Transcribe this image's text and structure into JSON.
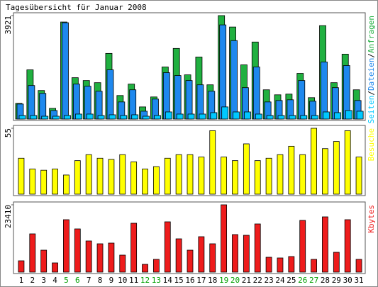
{
  "chart_data": {
    "title": "Tagesübersicht für Januar 2008",
    "categories": [
      "1",
      "2",
      "3",
      "4",
      "5",
      "6",
      "7",
      "8",
      "9",
      "10",
      "11",
      "12",
      "13",
      "14",
      "15",
      "16",
      "17",
      "18",
      "19",
      "20",
      "21",
      "22",
      "23",
      "24",
      "25",
      "26",
      "27",
      "28",
      "29",
      "30",
      "31"
    ],
    "category_colors": [
      "#000000",
      "#000000",
      "#000000",
      "#000000",
      "#00a000",
      "#00a000",
      "#000000",
      "#000000",
      "#000000",
      "#000000",
      "#000000",
      "#00a000",
      "#00a000",
      "#000000",
      "#000000",
      "#000000",
      "#000000",
      "#000000",
      "#00a000",
      "#00a000",
      "#000000",
      "#000000",
      "#000000",
      "#000000",
      "#000000",
      "#00a000",
      "#00a000",
      "#000000",
      "#000000",
      "#000000",
      "#000000"
    ],
    "legend_separator": "/",
    "charts": [
      {
        "type": "bar",
        "ylim": [
          0,
          3921
        ],
        "yticks": [
          3921
        ],
        "series": [
          {
            "name": "Seiten",
            "color": "#00c8ff",
            "values": [
              135,
              135,
              108,
              108,
              135,
              189,
              189,
              135,
              162,
              135,
              162,
              108,
              135,
              270,
              189,
              189,
              189,
              243,
              460,
              270,
              270,
              189,
              135,
              135,
              135,
              135,
              135,
              270,
              243,
              324,
              297
            ]
          },
          {
            "name": "Dateien",
            "color": "#1e88ee",
            "values": [
              568,
              1271,
              973,
              324,
              3651,
              1325,
              1244,
              1055,
              1866,
              649,
              1109,
              297,
              757,
              1758,
              1649,
              1460,
              1298,
              1055,
              3569,
              2974,
              1190,
              1974,
              649,
              703,
              730,
              1460,
              676,
              2163,
              1190,
              2028,
              703
            ]
          },
          {
            "name": "Anfragen",
            "color": "#20b040",
            "values": [
              595,
              1866,
              1082,
              406,
              3678,
              1568,
              1460,
              1379,
              2488,
              892,
              1325,
              460,
              838,
              1974,
              2677,
              1676,
              2352,
              1298,
              3921,
              3488,
              2055,
              2920,
              1109,
              919,
              946,
              1731,
              811,
              3542,
              1379,
              2461,
              1109
            ]
          }
        ]
      },
      {
        "type": "bar",
        "ylim": [
          0,
          55
        ],
        "yticks": [
          55
        ],
        "series": [
          {
            "name": "Besuche",
            "color": "#ffff00",
            "values": [
              30,
              21,
              20,
              21,
              16,
              28,
              33,
              30,
              29,
              33,
              27,
              21,
              23,
              30,
              33,
              33,
              31,
              53,
              31,
              28,
              42,
              28,
              30,
              33,
              40,
              33,
              55,
              38,
              44,
              53,
              31
            ]
          }
        ]
      },
      {
        "type": "bar",
        "ylim": [
          0,
          23410
        ],
        "yticks": [
          23410
        ],
        "series": [
          {
            "name": "Kbytes",
            "color": "#ee1c1c",
            "values": [
              3942,
              13306,
              7638,
              3203,
              18234,
              15030,
              10842,
              9856,
              10102,
              5914,
              17002,
              2710,
              4435,
              17494,
              11581,
              7638,
              12320,
              9856,
              23410,
              13059,
              12813,
              16755,
              5174,
              4928,
              5421,
              17987,
              4435,
              19219,
              6899,
              18234,
              4435
            ]
          }
        ]
      }
    ]
  }
}
